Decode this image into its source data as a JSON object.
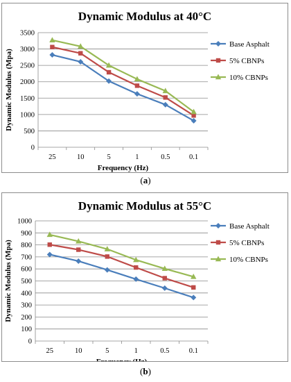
{
  "colors": {
    "Base Asphalt": "#4a7ebb",
    "5% CBNPs": "#be4b48",
    "10% CBNPs": "#98b954",
    "gridline": "#8a8a8a",
    "border": "#8c8c8c"
  },
  "chart_data": [
    {
      "type": "line",
      "caption": "a",
      "title": "Dynamic Modulus at 40°C",
      "xlabel": "Frequency (Hz)",
      "ylabel": "Dynamic Modulus (Mpa)",
      "categories": [
        "25",
        "10",
        "5",
        "1",
        "0.5",
        "0.1"
      ],
      "ylim": [
        0,
        3500
      ],
      "yticks": [
        "0",
        "500",
        "1000",
        "1500",
        "2000",
        "2500",
        "3000",
        "3500"
      ],
      "grid": "horizontal",
      "legend": "right",
      "series": [
        {
          "name": "Base Asphalt",
          "marker": "diamond",
          "values": [
            2820,
            2610,
            2020,
            1630,
            1300,
            810
          ]
        },
        {
          "name": "5% CBNPs",
          "marker": "square",
          "values": [
            3060,
            2870,
            2290,
            1880,
            1520,
            970
          ]
        },
        {
          "name": "10% CBNPs",
          "marker": "triangle",
          "values": [
            3270,
            3080,
            2500,
            2080,
            1720,
            1080
          ]
        }
      ]
    },
    {
      "type": "line",
      "caption": "b",
      "title": "Dynamic Modulus at 55°C",
      "xlabel": "Frequency (Hz)",
      "ylabel": "Dynamic Modulus (Mpa)",
      "categories": [
        "25",
        "10",
        "5",
        "1",
        "0.5",
        "0.1"
      ],
      "ylim": [
        0,
        1000
      ],
      "yticks": [
        "0",
        "100",
        "200",
        "300",
        "400",
        "500",
        "600",
        "700",
        "800",
        "900",
        "1000"
      ],
      "grid": "horizontal",
      "legend": "right",
      "series": [
        {
          "name": "Base Asphalt",
          "marker": "diamond",
          "values": [
            720,
            665,
            592,
            515,
            440,
            362
          ]
        },
        {
          "name": "5% CBNPs",
          "marker": "square",
          "values": [
            802,
            760,
            703,
            612,
            523,
            446
          ]
        },
        {
          "name": "10% CBNPs",
          "marker": "triangle",
          "values": [
            885,
            830,
            765,
            675,
            602,
            535
          ]
        }
      ]
    }
  ]
}
